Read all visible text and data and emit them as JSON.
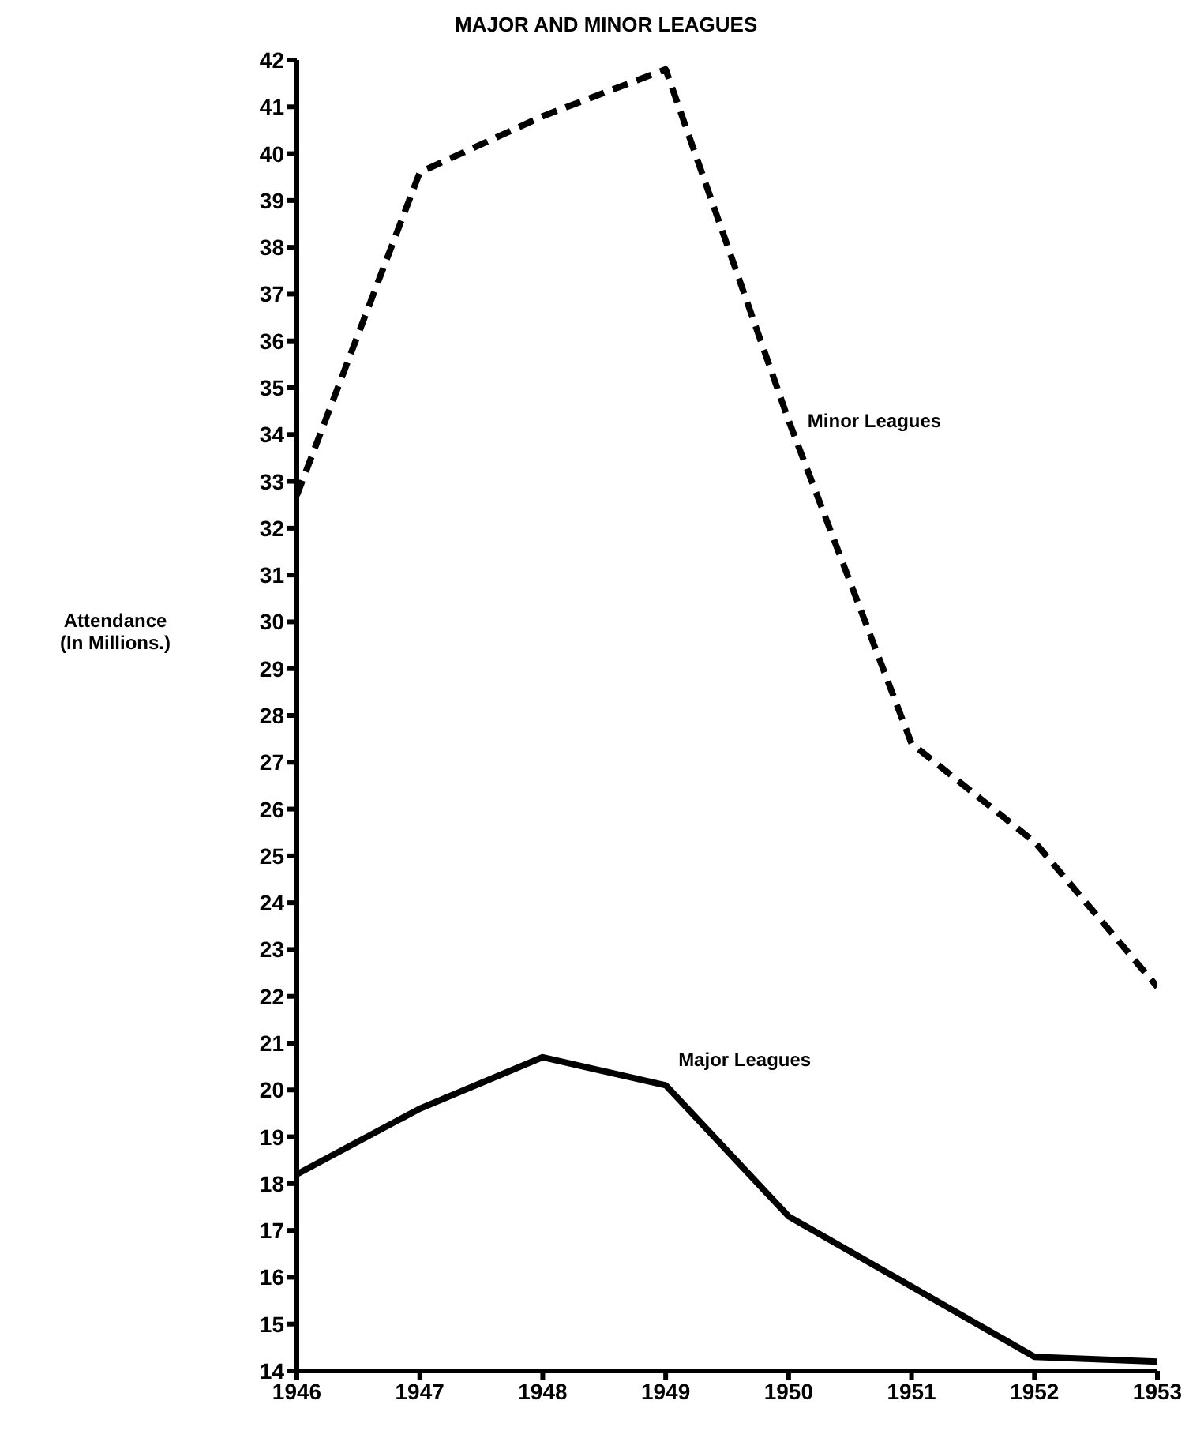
{
  "chart_data": {
    "type": "line",
    "title": "MAJOR AND MINOR LEAGUES",
    "ylabel": "Attendance (In Millions.)",
    "x": [
      1946,
      1947,
      1948,
      1949,
      1950,
      1951,
      1952,
      1953
    ],
    "xlim": [
      1946,
      1953
    ],
    "xticks": [
      1946,
      1947,
      1948,
      1949,
      1950,
      1951,
      1952,
      1953
    ],
    "ylim": [
      14,
      42
    ],
    "yticks": [
      14,
      15,
      16,
      17,
      18,
      19,
      20,
      21,
      22,
      23,
      24,
      25,
      26,
      27,
      28,
      29,
      30,
      31,
      32,
      33,
      34,
      35,
      36,
      37,
      38,
      39,
      40,
      41,
      42
    ],
    "legend": false,
    "marker": "none",
    "series": [
      {
        "name": "Minor Leagues",
        "color": "#000000",
        "line_style": "dashed",
        "values": [
          32.7,
          39.6,
          40.8,
          41.8,
          34.3,
          27.4,
          25.3,
          22.2
        ]
      },
      {
        "name": "Major Leagues",
        "color": "#000000",
        "line_style": "solid",
        "values": [
          18.2,
          19.6,
          20.7,
          20.1,
          17.3,
          15.8,
          14.3,
          14.2
        ]
      }
    ]
  }
}
